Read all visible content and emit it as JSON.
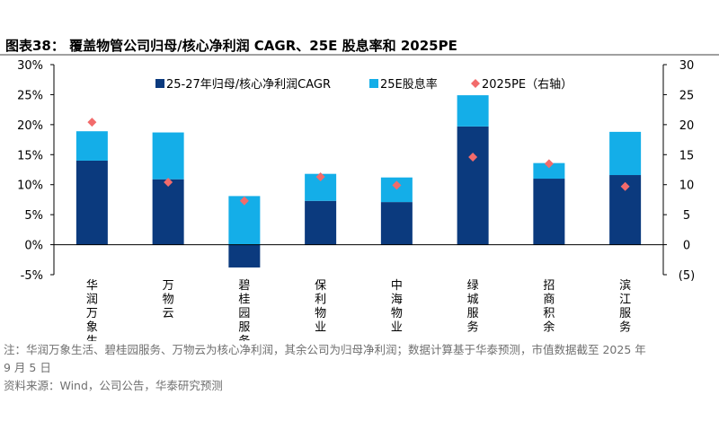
{
  "title": "图表38：  覆盖物管公司归母/核心净利润 CAGR、25E 股息率和 2025PE",
  "note_line1": "注：华润万象生活、碧桂园服务、万物云为核心净利润，其余公司为归母净利润；数据计算基于华泰预测，市值数据截至 2025 年",
  "note_line2": "9 月 5 日",
  "source": "资料来源：Wind，公司公告，华泰研究预测",
  "colors": {
    "cagr": "#0b3a7e",
    "yield": "#14aee8",
    "pe": "#f26b6b"
  },
  "chart_data": {
    "type": "bar",
    "stacked": true,
    "categories": [
      "华润万象生活",
      "万物云",
      "碧桂园服务",
      "保利物业",
      "中海物业",
      "绿城服务",
      "招商积余",
      "滨江服务"
    ],
    "series": [
      {
        "name": "25-27年归母/核心净利润CAGR",
        "axis": "left",
        "values": [
          14.0,
          10.9,
          -3.8,
          7.3,
          7.1,
          19.7,
          11.0,
          11.6
        ]
      },
      {
        "name": "25E股息率",
        "axis": "left",
        "values": [
          4.9,
          7.8,
          8.1,
          4.5,
          4.1,
          5.2,
          2.6,
          7.2
        ]
      },
      {
        "name": "2025PE（右轴）",
        "axis": "right",
        "type": "scatter",
        "values": [
          20.4,
          10.4,
          7.3,
          11.3,
          9.9,
          14.6,
          13.5,
          9.7
        ]
      }
    ],
    "y_left": {
      "min": -5,
      "max": 30,
      "step": 5,
      "tick_labels": [
        "-5%",
        "0%",
        "5%",
        "10%",
        "15%",
        "20%",
        "25%",
        "30%"
      ]
    },
    "y_right": {
      "min": -5,
      "max": 30,
      "step": 5,
      "tick_labels": [
        "(5)",
        "0",
        "5",
        "10",
        "15",
        "20",
        "25",
        "30"
      ]
    },
    "grid": false,
    "legend_position": "top"
  }
}
